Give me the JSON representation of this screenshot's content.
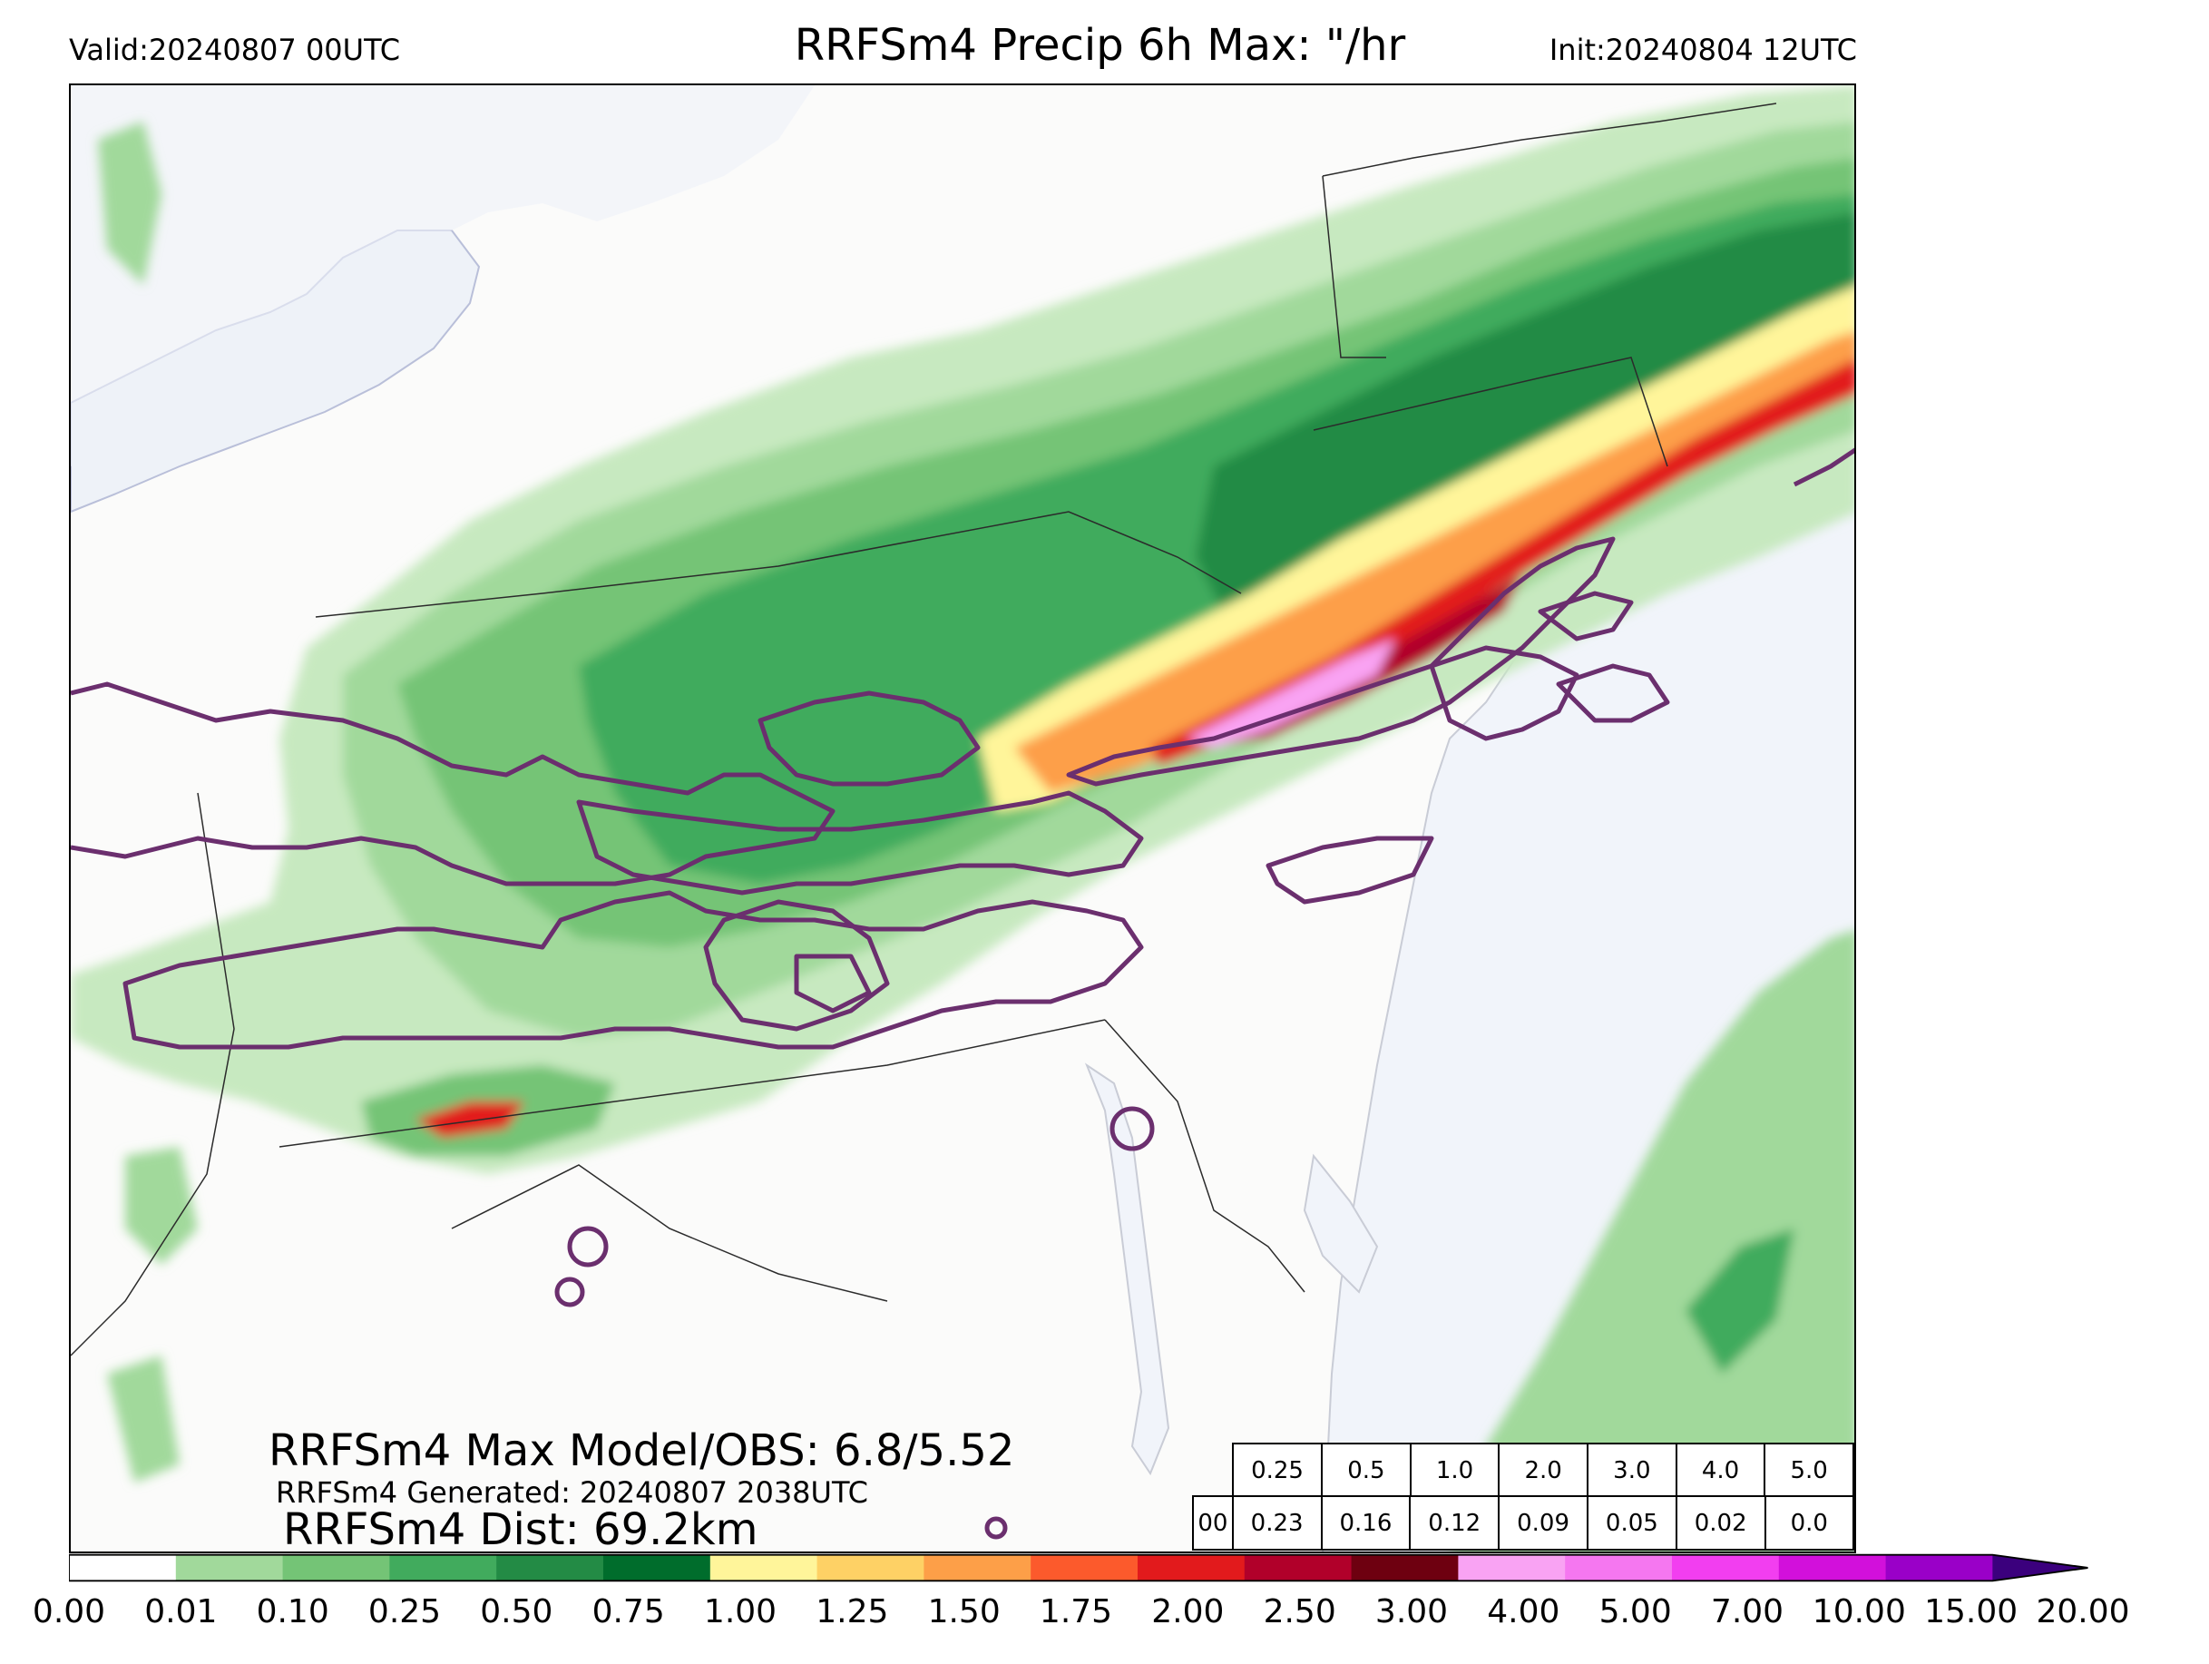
{
  "header": {
    "valid": "Valid:20240807 00UTC",
    "title": "RRFSm4 Precip 6h Max: \"/hr",
    "init": "Init:20240804 12UTC"
  },
  "overlay": {
    "max_model_obs": "RRFSm4 Max Model/OBS: 6.8/5.52",
    "generated": "RRFSm4 Generated: 20240807 2038UTC",
    "dist": "RRFSm4 Dist: 69.2km"
  },
  "threshold_table": {
    "thresholds": [
      "0.25",
      "0.5",
      "1.0",
      "2.0",
      "3.0",
      "4.0",
      "5.0"
    ],
    "row_label": "00",
    "values": [
      "0.23",
      "0.16",
      "0.12",
      "0.09",
      "0.05",
      "0.02",
      "0.0"
    ]
  },
  "colorbar": {
    "ticks": [
      "0.00",
      "0.01",
      "0.10",
      "0.25",
      "0.50",
      "0.75",
      "1.00",
      "1.25",
      "1.50",
      "1.75",
      "2.00",
      "2.50",
      "3.00",
      "4.00",
      "5.00",
      "7.00",
      "10.00",
      "15.00",
      "20.00"
    ],
    "colors": [
      "#ffffff",
      "#c7e9c0",
      "#a1d99b",
      "#74c476",
      "#41ab5d",
      "#238b45",
      "#006d2c",
      "#fff59a",
      "#fed165",
      "#fd9f48",
      "#fc5a2c",
      "#e21a1c",
      "#b1002a",
      "#6e0010",
      "#f9a3f3",
      "#f577f0",
      "#f23ef0",
      "#d210db",
      "#9a00c8"
    ],
    "extend_color": "#3b007d"
  },
  "colors": {
    "water": "#f1f4fa",
    "land": "#fbfbfa",
    "obs_contour": "#6b2f6e",
    "borders": "#2b2b2b"
  }
}
